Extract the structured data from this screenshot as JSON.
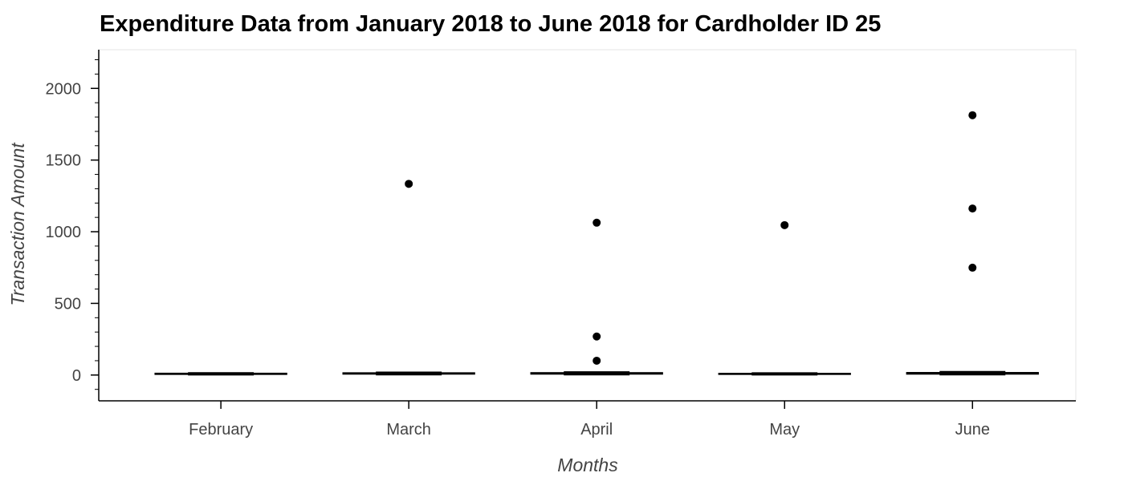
{
  "chart_data": {
    "type": "box",
    "title": "Expenditure Data from January 2018 to June 2018 for Cardholder ID 25",
    "xlabel": "Months",
    "ylabel": "Transaction Amount",
    "categories": [
      "February",
      "March",
      "April",
      "May",
      "June"
    ],
    "ylim": [
      -180,
      2270
    ],
    "yticks": [
      0,
      500,
      1000,
      1500,
      2000
    ],
    "y_minor_step": 100,
    "grid": false,
    "legend": "none",
    "boxes": [
      {
        "category": "February",
        "min": 1,
        "q1": 5,
        "median": 8,
        "q3": 12,
        "max": 16
      },
      {
        "category": "March",
        "min": 2,
        "q1": 7,
        "median": 10,
        "q3": 15,
        "max": 20
      },
      {
        "category": "April",
        "min": 2,
        "q1": 7,
        "median": 10,
        "q3": 16,
        "max": 22
      },
      {
        "category": "May",
        "min": 1,
        "q1": 5,
        "median": 8,
        "q3": 11,
        "max": 15
      },
      {
        "category": "June",
        "min": 2,
        "q1": 7,
        "median": 11,
        "q3": 17,
        "max": 24
      }
    ],
    "outliers": [
      {
        "category": "March",
        "values": [
          1334
        ]
      },
      {
        "category": "April",
        "values": [
          1063,
          269,
          100
        ]
      },
      {
        "category": "May",
        "values": [
          1046
        ]
      },
      {
        "category": "June",
        "values": [
          1813,
          1162,
          749
        ]
      }
    ],
    "colors": {
      "box_fill": "#1f77b4",
      "line": "#000000",
      "outlier": "#000000",
      "text": "#444444",
      "frame": "#e5e5e5"
    }
  }
}
